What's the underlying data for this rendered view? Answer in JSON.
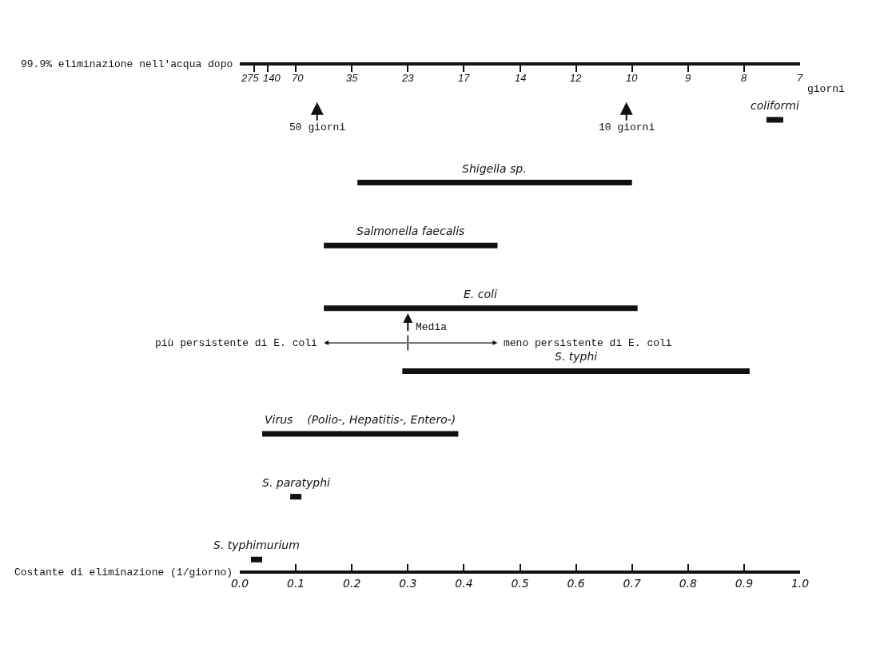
{
  "chart_data": {
    "type": "bar",
    "orientation": "horizontal",
    "categories": [
      null,
      null,
      null,
      null,
      null,
      null,
      null,
      null
    ],
    "base": [
      0.94,
      0.21,
      0.15,
      0.15,
      0.29,
      0.04,
      0.09,
      0.02
    ],
    "values": [
      0.03,
      0.49,
      0.31,
      0.56,
      0.62,
      0.35,
      0.02,
      0.02
    ],
    "color": "#111111",
    "xlabel": "Costante di eliminazione (1/giorno)",
    "xlim": [
      0,
      1
    ],
    "xticks": [
      {
        "value": 0,
        "label": "0.0"
      },
      0.1,
      0.2,
      0.3,
      0.4,
      0.5,
      0.6,
      0.7,
      0.8,
      0.9,
      {
        "value": 1,
        "label": "1.0"
      }
    ],
    "ref_lines": [
      {
        "axis": "x",
        "value": 0.3,
        "label": "Media"
      }
    ],
    "annotations": [
      "coliformi",
      "Shigella sp.",
      "Salmonella faecalis",
      "E. coli",
      "S. typhi",
      "Virus    (Polio-, Hepatitis-, Entero-)",
      "S. paratyphi",
      "S. typhimurium",
      "99.9% eliminazione nell'acqua dopo",
      "275",
      "140",
      "70",
      "35",
      "23",
      "17",
      "14",
      "12",
      "10",
      "9",
      "8",
      "7",
      "giorni",
      "50 giorni",
      "10 giorni",
      "più persistente di E. coli",
      "meno persistente di E. coli"
    ],
    "grid": false
  }
}
